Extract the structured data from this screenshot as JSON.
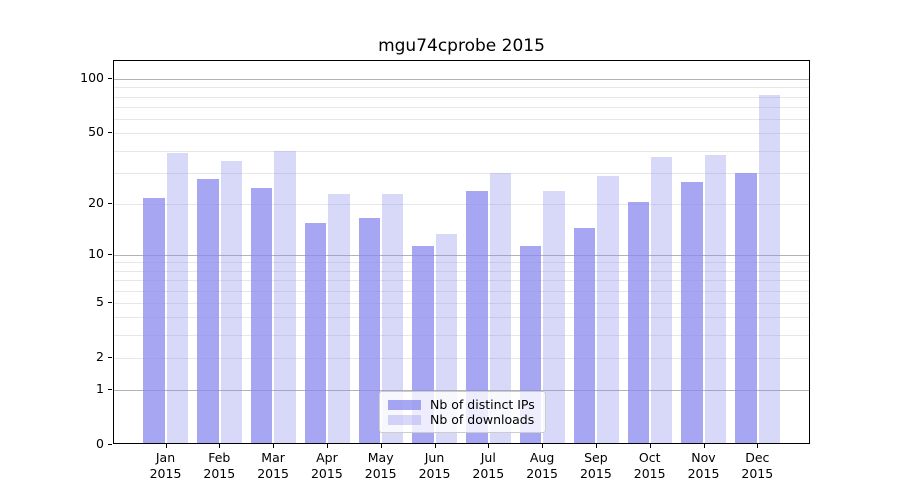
{
  "figure_title": "mgu74cprobe 2015",
  "chart_data": {
    "type": "bar",
    "title": "mgu74cprobe 2015",
    "xlabel": "",
    "ylabel": "",
    "yscale": "log1p",
    "ylim": [
      0,
      126
    ],
    "grid": true,
    "legend_position": "lower center",
    "categories": [
      "Jan 2015",
      "Feb 2015",
      "Mar 2015",
      "Apr 2015",
      "May 2015",
      "Jun 2015",
      "Jul 2015",
      "Aug 2015",
      "Sep 2015",
      "Oct 2015",
      "Nov 2015",
      "Dec 2015"
    ],
    "months": [
      "Jan",
      "Feb",
      "Mar",
      "Apr",
      "May",
      "Jun",
      "Jul",
      "Aug",
      "Sep",
      "Oct",
      "Nov",
      "Dec"
    ],
    "year_label": "2015",
    "series": [
      {
        "name": "Nb of distinct IPs",
        "color": "rgba(136,136,238,0.75)",
        "values": [
          21,
          27,
          24,
          15,
          16,
          11,
          23,
          11,
          14,
          20,
          26,
          29
        ]
      },
      {
        "name": "Nb of downloads",
        "color": "rgba(136,136,238,0.33)",
        "values": [
          38,
          34,
          39,
          22,
          22,
          13,
          29,
          23,
          28,
          36,
          37,
          80
        ]
      }
    ],
    "y_ticks": [
      100,
      50,
      20,
      10,
      5,
      2,
      1,
      0
    ],
    "major_gridlines": [
      1,
      10,
      100
    ],
    "minor_gridlines": [
      2,
      3,
      4,
      5,
      6,
      7,
      8,
      9,
      20,
      30,
      40,
      50,
      60,
      70,
      80,
      90
    ]
  },
  "legend": {
    "items": [
      {
        "label": "Nb of distinct IPs"
      },
      {
        "label": "Nb of downloads"
      }
    ]
  },
  "colors": {
    "bar_base": "#8888ee",
    "major_grid": "#b3b3b3",
    "minor_grid": "#e7e7e7",
    "axis": "#000000",
    "legend_border": "#cccccc"
  }
}
